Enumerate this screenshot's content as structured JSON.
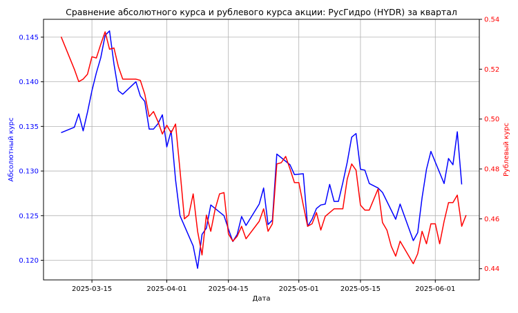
{
  "colors": {
    "left_series": "#0000ff",
    "right_series": "#ff0000",
    "grid": "#b0b0b0",
    "axis": "#000000"
  },
  "chart_data": {
    "type": "line",
    "title": "Сравнение абсолютного курса и рублевого курса акции: РусГидро (HYDR) за квартал",
    "xlabel": "Дата",
    "ylabel_left": "Абсолютный курс",
    "ylabel_right": "Рублевый курс",
    "grid": true,
    "xlim": [
      "2025-03-04",
      "2025-06-11"
    ],
    "ylim_left": [
      0.1178,
      0.147
    ],
    "ylim_right": [
      0.4355,
      0.54
    ],
    "x_ticks": [
      "2025-03-15",
      "2025-04-01",
      "2025-04-15",
      "2025-05-01",
      "2025-05-15",
      "2025-06-01"
    ],
    "y_ticks_left": [
      "0.120",
      "0.125",
      "0.130",
      "0.135",
      "0.140",
      "0.145"
    ],
    "y_ticks_right": [
      "0.44",
      "0.46",
      "0.48",
      "0.50",
      "0.52",
      "0.54"
    ],
    "series": [
      {
        "axis": "left",
        "points": [
          [
            "2025-03-08",
            0.1343
          ],
          [
            "2025-03-11",
            0.1349
          ],
          [
            "2025-03-12",
            0.1364
          ],
          [
            "2025-03-13",
            0.1345
          ],
          [
            "2025-03-14",
            0.1366
          ],
          [
            "2025-03-15",
            0.139
          ],
          [
            "2025-03-16",
            0.141
          ],
          [
            "2025-03-17",
            0.1427
          ],
          [
            "2025-03-18",
            0.1452
          ],
          [
            "2025-03-19",
            0.1457
          ],
          [
            "2025-03-20",
            0.142
          ],
          [
            "2025-03-21",
            0.139
          ],
          [
            "2025-03-22",
            0.1386
          ],
          [
            "2025-03-25",
            0.14
          ],
          [
            "2025-03-26",
            0.1384
          ],
          [
            "2025-03-27",
            0.1378
          ],
          [
            "2025-03-28",
            0.1347
          ],
          [
            "2025-03-29",
            0.1347
          ],
          [
            "2025-03-30",
            0.1353
          ],
          [
            "2025-03-31",
            0.1363
          ],
          [
            "2025-04-01",
            0.1327
          ],
          [
            "2025-04-02",
            0.1345
          ],
          [
            "2025-04-03",
            0.129
          ],
          [
            "2025-04-04",
            0.125
          ],
          [
            "2025-04-07",
            0.1216
          ],
          [
            "2025-04-08",
            0.1191
          ],
          [
            "2025-04-09",
            0.1229
          ],
          [
            "2025-04-10",
            0.1236
          ],
          [
            "2025-04-11",
            0.1262
          ],
          [
            "2025-04-14",
            0.125
          ],
          [
            "2025-04-15",
            0.1235
          ],
          [
            "2025-04-16",
            0.1221
          ],
          [
            "2025-04-17",
            0.1229
          ],
          [
            "2025-04-18",
            0.1249
          ],
          [
            "2025-04-19",
            0.1239
          ],
          [
            "2025-04-22",
            0.1263
          ],
          [
            "2025-04-23",
            0.1281
          ],
          [
            "2025-04-24",
            0.124
          ],
          [
            "2025-04-25",
            0.1245
          ],
          [
            "2025-04-26",
            0.1319
          ],
          [
            "2025-04-29",
            0.1307
          ],
          [
            "2025-04-30",
            0.1296
          ],
          [
            "2025-05-02",
            0.1297
          ],
          [
            "2025-05-03",
            0.1238
          ],
          [
            "2025-05-04",
            0.1246
          ],
          [
            "2025-05-05",
            0.1258
          ],
          [
            "2025-05-06",
            0.1262
          ],
          [
            "2025-05-07",
            0.1263
          ],
          [
            "2025-05-08",
            0.1285
          ],
          [
            "2025-05-09",
            0.1266
          ],
          [
            "2025-05-10",
            0.1266
          ],
          [
            "2025-05-11",
            0.1287
          ],
          [
            "2025-05-12",
            0.131
          ],
          [
            "2025-05-13",
            0.1338
          ],
          [
            "2025-05-14",
            0.1342
          ],
          [
            "2025-05-15",
            0.1302
          ],
          [
            "2025-05-16",
            0.1301
          ],
          [
            "2025-05-17",
            0.1286
          ],
          [
            "2025-05-19",
            0.1281
          ],
          [
            "2025-05-20",
            0.1276
          ],
          [
            "2025-05-23",
            0.1246
          ],
          [
            "2025-05-24",
            0.1263
          ],
          [
            "2025-05-27",
            0.1222
          ],
          [
            "2025-05-28",
            0.1231
          ],
          [
            "2025-05-29",
            0.127
          ],
          [
            "2025-05-30",
            0.1302
          ],
          [
            "2025-05-31",
            0.1322
          ],
          [
            "2025-06-03",
            0.1286
          ],
          [
            "2025-06-04",
            0.1314
          ],
          [
            "2025-06-05",
            0.1307
          ],
          [
            "2025-06-06",
            0.1344
          ],
          [
            "2025-06-07",
            0.1285
          ]
        ]
      },
      {
        "axis": "right",
        "points": [
          [
            "2025-03-08",
            0.533
          ],
          [
            "2025-03-11",
            0.52
          ],
          [
            "2025-03-12",
            0.515
          ],
          [
            "2025-03-13",
            0.516
          ],
          [
            "2025-03-14",
            0.518
          ],
          [
            "2025-03-15",
            0.525
          ],
          [
            "2025-03-16",
            0.5245
          ],
          [
            "2025-03-17",
            0.53
          ],
          [
            "2025-03-18",
            0.535
          ],
          [
            "2025-03-19",
            0.528
          ],
          [
            "2025-03-20",
            0.5285
          ],
          [
            "2025-03-21",
            0.521
          ],
          [
            "2025-03-22",
            0.516
          ],
          [
            "2025-03-25",
            0.516
          ],
          [
            "2025-03-26",
            0.5155
          ],
          [
            "2025-03-27",
            0.51
          ],
          [
            "2025-03-28",
            0.501
          ],
          [
            "2025-03-29",
            0.503
          ],
          [
            "2025-03-30",
            0.499
          ],
          [
            "2025-03-31",
            0.494
          ],
          [
            "2025-04-01",
            0.4975
          ],
          [
            "2025-04-02",
            0.4945
          ],
          [
            "2025-04-03",
            0.498
          ],
          [
            "2025-04-04",
            0.4795
          ],
          [
            "2025-04-05",
            0.46
          ],
          [
            "2025-04-06",
            0.4615
          ],
          [
            "2025-04-07",
            0.47
          ],
          [
            "2025-04-08",
            0.455
          ],
          [
            "2025-04-09",
            0.4455
          ],
          [
            "2025-04-10",
            0.4615
          ],
          [
            "2025-04-11",
            0.455
          ],
          [
            "2025-04-12",
            0.464
          ],
          [
            "2025-04-13",
            0.47
          ],
          [
            "2025-04-14",
            0.4705
          ],
          [
            "2025-04-15",
            0.454
          ],
          [
            "2025-04-16",
            0.451
          ],
          [
            "2025-04-17",
            0.453
          ],
          [
            "2025-04-18",
            0.457
          ],
          [
            "2025-04-19",
            0.452
          ],
          [
            "2025-04-22",
            0.459
          ],
          [
            "2025-04-23",
            0.464
          ],
          [
            "2025-04-24",
            0.455
          ],
          [
            "2025-04-25",
            0.458
          ],
          [
            "2025-04-26",
            0.482
          ],
          [
            "2025-04-27",
            0.4825
          ],
          [
            "2025-04-28",
            0.485
          ],
          [
            "2025-04-29",
            0.48
          ],
          [
            "2025-04-30",
            0.4745
          ],
          [
            "2025-05-01",
            0.4745
          ],
          [
            "2025-05-02",
            0.4655
          ],
          [
            "2025-05-03",
            0.457
          ],
          [
            "2025-05-04",
            0.458
          ],
          [
            "2025-05-05",
            0.4625
          ],
          [
            "2025-05-06",
            0.4555
          ],
          [
            "2025-05-07",
            0.461
          ],
          [
            "2025-05-09",
            0.464
          ],
          [
            "2025-05-11",
            0.464
          ],
          [
            "2025-05-12",
            0.476
          ],
          [
            "2025-05-13",
            0.482
          ],
          [
            "2025-05-14",
            0.4795
          ],
          [
            "2025-05-15",
            0.4655
          ],
          [
            "2025-05-16",
            0.4635
          ],
          [
            "2025-05-17",
            0.4635
          ],
          [
            "2025-05-19",
            0.472
          ],
          [
            "2025-05-20",
            0.4585
          ],
          [
            "2025-05-21",
            0.4555
          ],
          [
            "2025-05-22",
            0.449
          ],
          [
            "2025-05-23",
            0.445
          ],
          [
            "2025-05-24",
            0.451
          ],
          [
            "2025-05-27",
            0.442
          ],
          [
            "2025-05-28",
            0.446
          ],
          [
            "2025-05-29",
            0.455
          ],
          [
            "2025-05-30",
            0.45
          ],
          [
            "2025-05-31",
            0.458
          ],
          [
            "2025-06-01",
            0.458
          ],
          [
            "2025-06-02",
            0.45
          ],
          [
            "2025-06-03",
            0.459
          ],
          [
            "2025-06-04",
            0.4665
          ],
          [
            "2025-06-05",
            0.4665
          ],
          [
            "2025-06-06",
            0.4695
          ],
          [
            "2025-06-07",
            0.457
          ],
          [
            "2025-06-08",
            0.4615
          ]
        ]
      }
    ]
  }
}
